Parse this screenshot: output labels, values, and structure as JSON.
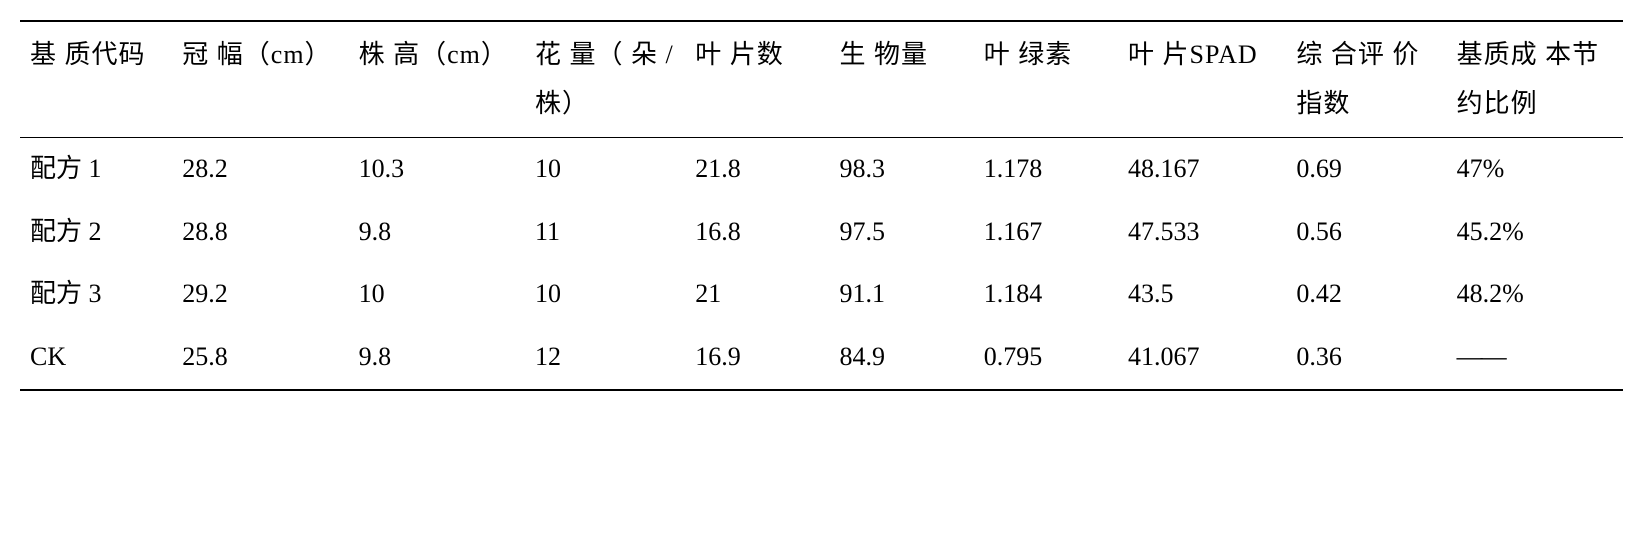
{
  "table": {
    "columns": [
      "基 质代码",
      "冠   幅（cm）",
      "株   高（cm）",
      "花 量（ 朵 /株）",
      "叶 片数",
      "生 物量",
      "叶 绿素",
      "叶 片SPAD",
      "综 合评 价指数",
      "基质成 本节约比例"
    ],
    "rows": [
      [
        "配方 1",
        "28.2",
        "10.3",
        "10",
        "21.8",
        "98.3",
        "1.178",
        "48.167",
        "0.69",
        "47%"
      ],
      [
        "配方 2",
        "28.8",
        "9.8",
        "11",
        "16.8",
        "97.5",
        "1.167",
        "47.533",
        "0.56",
        "45.2%"
      ],
      [
        "配方 3",
        "29.2",
        "10",
        "10",
        "21",
        "91.1",
        "1.184",
        "43.5",
        "0.42",
        "48.2%"
      ],
      [
        "CK",
        "25.8",
        "9.8",
        "12",
        "16.9",
        "84.9",
        "0.795",
        "41.067",
        "0.36",
        "——"
      ]
    ],
    "col_widths": [
      "9.5%",
      "11%",
      "11%",
      "10%",
      "9%",
      "9%",
      "9%",
      "10.5%",
      "10%",
      "11%"
    ]
  }
}
